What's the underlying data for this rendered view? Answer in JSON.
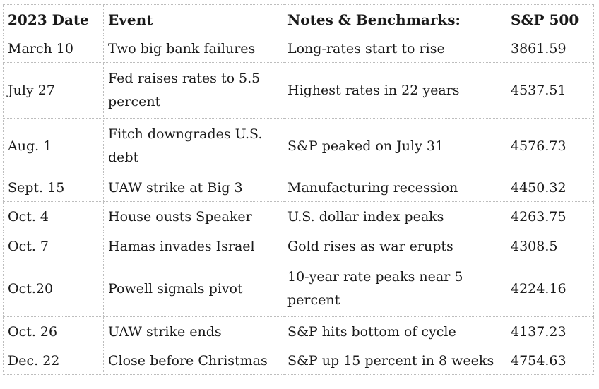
{
  "headers": [
    "2023 Date",
    "Event",
    "Notes & Benchmarks:",
    "S&P 500"
  ],
  "rows": [
    {
      "date": "March 10",
      "event": "Two big bank failures",
      "notes": "Long-rates start to rise",
      "sp500": "3861.59"
    },
    {
      "date": "July 27",
      "event": "Fed raises rates to 5.5 percent",
      "notes": "Highest rates in 22 years",
      "sp500": "4537.51"
    },
    {
      "date": "Aug. 1",
      "event": "Fitch downgrades U.S. debt",
      "notes": "S&P peaked on July 31",
      "sp500": "4576.73"
    },
    {
      "date": "Sept. 15",
      "event": "UAW strike at Big 3",
      "notes": "Manufacturing recession",
      "sp500": "4450.32"
    },
    {
      "date": "Oct. 4",
      "event": "House ousts Speaker",
      "notes": "U.S. dollar index peaks",
      "sp500": "4263.75"
    },
    {
      "date": "Oct. 7",
      "event": "Hamas invades Israel",
      "notes": "Gold rises as war erupts",
      "sp500": "4308.5"
    },
    {
      "date": "Oct.20",
      "event": "Powell signals pivot",
      "notes": "10-year rate peaks near 5 percent",
      "sp500": "4224.16"
    },
    {
      "date": "Oct. 26",
      "event": "UAW strike ends",
      "notes": "S&P hits bottom of cycle",
      "sp500": "4137.23"
    },
    {
      "date": "Dec. 22",
      "event": "Close before Christmas",
      "notes": "S&P up 15 percent in 8 weeks",
      "sp500": "4754.63"
    }
  ]
}
